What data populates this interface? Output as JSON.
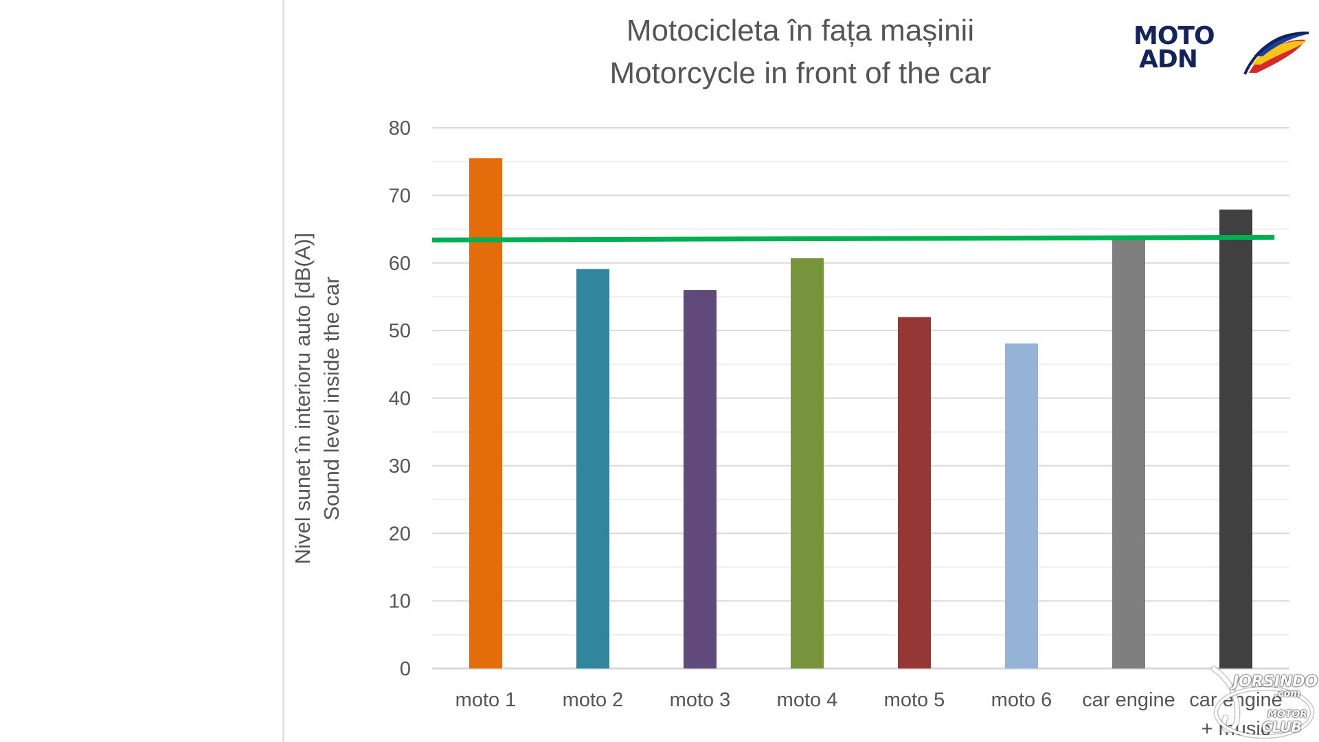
{
  "chart_data": {
    "type": "bar",
    "title": [
      "Motocicleta în fața mașinii",
      "Motorcycle in front of the car"
    ],
    "ylabel": [
      "Nivel sunet în interioru auto [dB(A)]",
      "Sound level inside the car"
    ],
    "xlabel": "",
    "categories": [
      "moto 1",
      "moto 2",
      "moto 3",
      "moto 4",
      "moto 5",
      "moto 6",
      "car engine",
      "car engine + music"
    ],
    "values": [
      75.5,
      59.1,
      56.0,
      60.7,
      52.0,
      48.1,
      63.8,
      67.9
    ],
    "colors": [
      "#e46c0a",
      "#31859c",
      "#604a7b",
      "#77933c",
      "#953735",
      "#95b3d7",
      "#7f7f7f",
      "#404040"
    ],
    "reference_line": {
      "value_start": 63.4,
      "value_end": 63.8,
      "color": "#00b050"
    },
    "ylim": [
      0,
      80
    ],
    "yticks": [
      0,
      10,
      20,
      30,
      40,
      50,
      60,
      70,
      80
    ],
    "grid": true,
    "legend": "none"
  },
  "logo": {
    "line1": "MOTO",
    "line2": "ADN"
  },
  "watermark": {
    "line1": "JORSINDO",
    "line2": ".com",
    "line3": "MOTOR",
    "line4": "CLUB"
  }
}
